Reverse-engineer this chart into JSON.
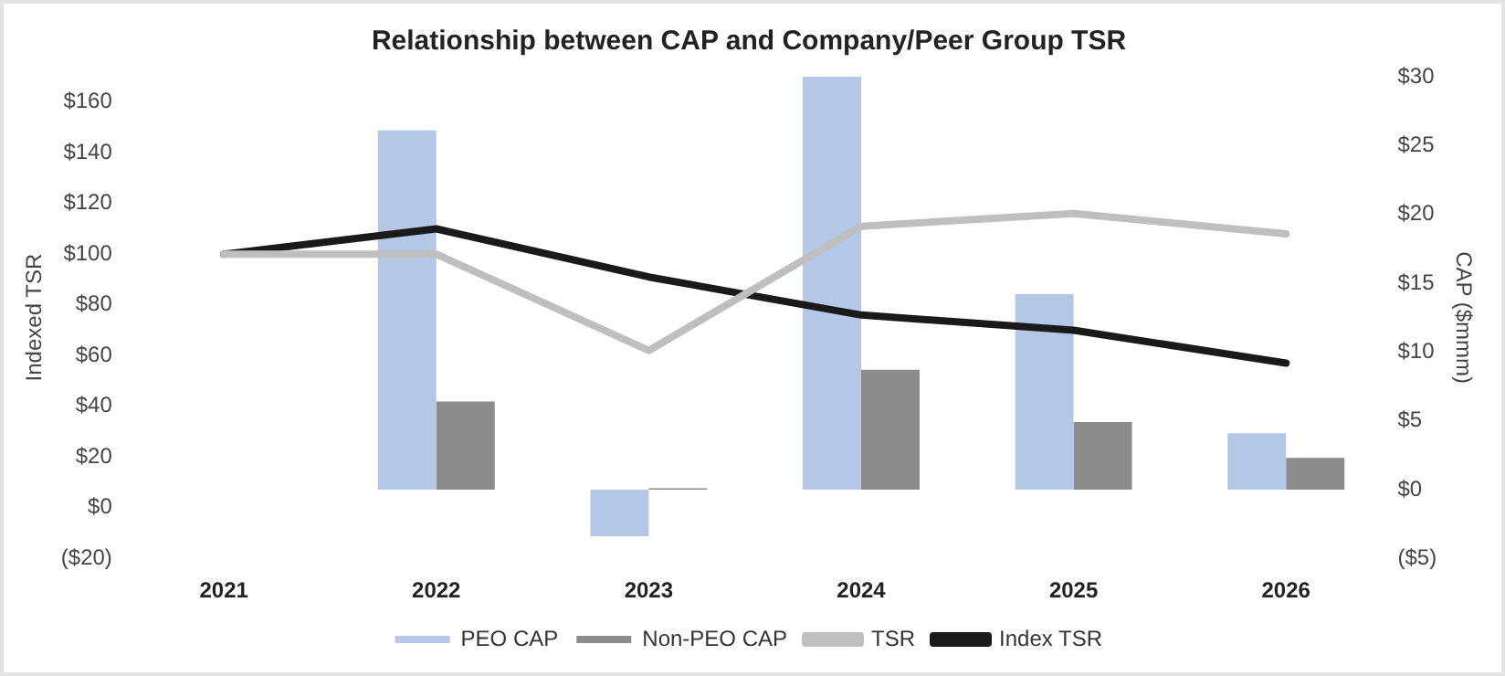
{
  "chart_data": {
    "type": "bar",
    "title": "Relationship between CAP and Company/Peer Group TSR",
    "ylabel": "Indexed TSR",
    "y2label": "CAP ($mmm)",
    "categories": [
      "2021",
      "2022",
      "2023",
      "2024",
      "2025",
      "2026"
    ],
    "series": [
      {
        "name": "PEO CAP",
        "axis": "y2",
        "color": "#b4c7e7",
        "values": [
          null,
          26.1,
          -3.4,
          30,
          14.2,
          4.1
        ]
      },
      {
        "name": "Non-PEO CAP",
        "axis": "y2",
        "color": "#8c8c8c",
        "values": [
          null,
          6.4,
          0.1,
          8.7,
          4.9,
          2.3
        ]
      },
      {
        "name": "TSR",
        "type": "line",
        "color": "#bfbfbf",
        "values": [
          100,
          100,
          62,
          111,
          116,
          108
        ]
      },
      {
        "name": "Index TSR",
        "type": "line",
        "color": "#1a1a1a",
        "values": [
          100,
          110,
          91,
          76,
          70,
          57
        ]
      }
    ],
    "ylim": [
      -20,
      170
    ],
    "yticks": [
      {
        "value": -20,
        "label": "($20)"
      },
      {
        "value": 0,
        "label": "$0"
      },
      {
        "value": 20,
        "label": "$20"
      },
      {
        "value": 40,
        "label": "$40"
      },
      {
        "value": 60,
        "label": "$60"
      },
      {
        "value": 80,
        "label": "$80"
      },
      {
        "value": 100,
        "label": "$100"
      },
      {
        "value": 120,
        "label": "$120"
      },
      {
        "value": 140,
        "label": "$140"
      },
      {
        "value": 160,
        "label": "$160"
      }
    ],
    "y2lim": [
      -5,
      30
    ],
    "y2ticks": [
      {
        "value": -5,
        "label": "($5)"
      },
      {
        "value": 0,
        "label": "$0"
      },
      {
        "value": 5,
        "label": "$5"
      },
      {
        "value": 10,
        "label": "$10"
      },
      {
        "value": 15,
        "label": "$15"
      },
      {
        "value": 20,
        "label": "$20"
      },
      {
        "value": 25,
        "label": "$25"
      },
      {
        "value": 30,
        "label": "$30"
      }
    ],
    "grid": false,
    "legend": "bottom",
    "marker": "none"
  }
}
